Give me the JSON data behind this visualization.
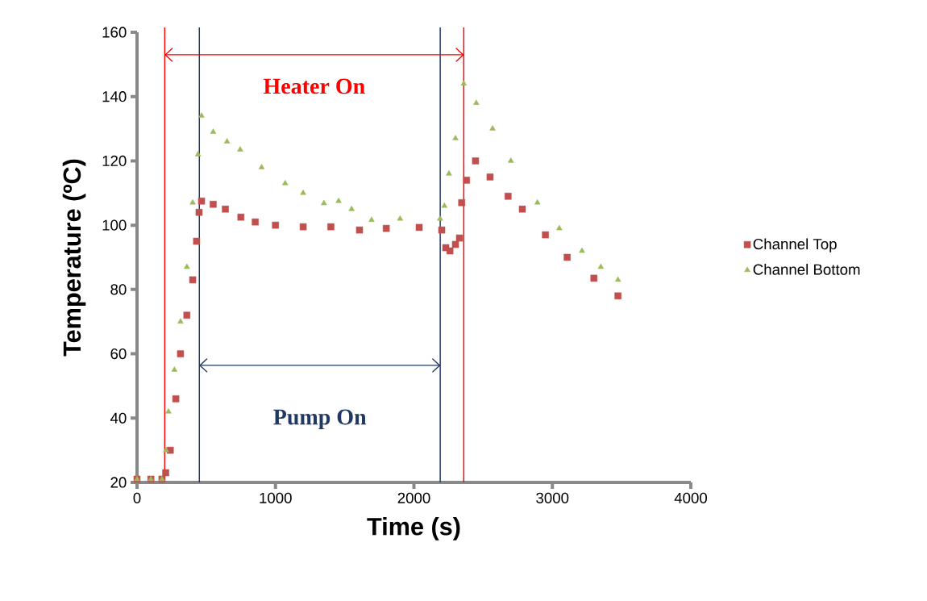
{
  "chart_data": {
    "type": "scatter",
    "xlabel": "Time (s)",
    "ylabel": "Temperature (ºC)",
    "xlim": [
      0,
      4000
    ],
    "ylim": [
      20,
      160
    ],
    "xticks": [
      0,
      1000,
      2000,
      3000,
      4000
    ],
    "yticks": [
      20,
      40,
      60,
      80,
      100,
      120,
      140,
      160
    ],
    "grid": false,
    "legend": "right",
    "series": [
      {
        "name": "Channel Top",
        "color": "#c0504d",
        "marker": "square",
        "x": [
          0,
          100,
          180,
          207,
          240,
          280,
          314,
          360,
          402,
          430,
          448,
          466,
          550,
          638,
          750,
          854,
          1000,
          1200,
          1400,
          1607,
          1800,
          2038,
          2201,
          2230,
          2260,
          2300,
          2329,
          2345,
          2380,
          2445,
          2550,
          2680,
          2783,
          2950,
          3107,
          3300,
          3474
        ],
        "values": [
          21,
          21,
          21,
          23,
          30,
          46,
          60,
          72,
          83,
          95,
          104,
          107.5,
          106.5,
          105,
          102.5,
          101,
          100,
          99.5,
          99.5,
          98.5,
          99,
          99.3,
          98.5,
          93,
          92,
          94,
          96,
          107,
          114,
          120,
          115,
          109,
          105,
          97,
          90,
          83.5,
          78
        ]
      },
      {
        "name": "Channel Bottom",
        "color": "#9bbb59",
        "marker": "triangle",
        "x": [
          0,
          100,
          180,
          210,
          227,
          270,
          314,
          360,
          402,
          440,
          466,
          550,
          650,
          745,
          900,
          1070,
          1200,
          1350,
          1456,
          1550,
          1694,
          1900,
          2189,
          2220,
          2253,
          2300,
          2360,
          2450,
          2568,
          2700,
          2892,
          3050,
          3214,
          3350,
          3474
        ],
        "values": [
          21,
          21,
          21,
          30,
          42,
          55,
          70,
          87,
          107,
          122,
          134,
          129,
          126,
          123.5,
          118,
          113,
          110,
          106.8,
          107.5,
          105,
          101.6,
          102,
          102,
          106,
          116,
          127,
          144,
          138,
          130,
          120,
          107,
          99,
          92,
          87,
          83
        ]
      }
    ],
    "ref_lines": [
      {
        "axis": "x",
        "value": 200,
        "color": "#ff0000"
      },
      {
        "axis": "x",
        "value": 2360,
        "color": "#ff0000"
      },
      {
        "axis": "x",
        "value": 450,
        "color": "#1f3864"
      },
      {
        "axis": "x",
        "value": 2190,
        "color": "#1f3864"
      }
    ],
    "annotations": [
      "Heater On",
      "Pump On"
    ]
  }
}
